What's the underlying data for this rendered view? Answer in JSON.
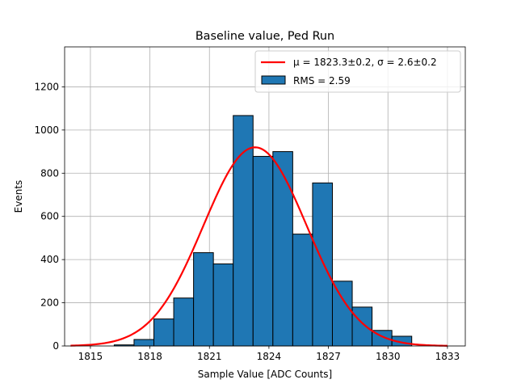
{
  "chart_data": {
    "type": "bar",
    "title": "Baseline value, Ped Run",
    "xlabel": "Sample Value [ADC Counts]",
    "ylabel": "Events",
    "xlim": [
      1813.7,
      1833.9
    ],
    "ylim": [
      0,
      1385
    ],
    "xticks": [
      1815,
      1818,
      1821,
      1824,
      1827,
      1830,
      1833
    ],
    "yticks": [
      0,
      200,
      400,
      600,
      800,
      1000,
      1200
    ],
    "grid": true,
    "legend_position": "top-right",
    "bar_color": "#1f77b4",
    "fit_color": "#ff0000",
    "bins": [
      {
        "x0": 1814.2,
        "x1": 1815.2,
        "value": 0
      },
      {
        "x0": 1815.2,
        "x1": 1816.2,
        "value": 0
      },
      {
        "x0": 1816.2,
        "x1": 1817.2,
        "value": 5
      },
      {
        "x0": 1817.2,
        "x1": 1818.2,
        "value": 30
      },
      {
        "x0": 1818.2,
        "x1": 1819.2,
        "value": 125
      },
      {
        "x0": 1819.2,
        "x1": 1820.2,
        "value": 222
      },
      {
        "x0": 1820.2,
        "x1": 1821.2,
        "value": 432
      },
      {
        "x0": 1821.2,
        "x1": 1822.2,
        "value": 380
      },
      {
        "x0": 1822.2,
        "x1": 1823.2,
        "value": 1067
      },
      {
        "x0": 1823.2,
        "x1": 1824.2,
        "value": 878
      },
      {
        "x0": 1824.2,
        "x1": 1825.2,
        "value": 900
      },
      {
        "x0": 1825.2,
        "x1": 1826.2,
        "value": 518
      },
      {
        "x0": 1826.2,
        "x1": 1827.2,
        "value": 755
      },
      {
        "x0": 1827.2,
        "x1": 1828.2,
        "value": 300
      },
      {
        "x0": 1828.2,
        "x1": 1829.2,
        "value": 180
      },
      {
        "x0": 1829.2,
        "x1": 1830.2,
        "value": 72
      },
      {
        "x0": 1830.2,
        "x1": 1831.2,
        "value": 45
      },
      {
        "x0": 1831.2,
        "x1": 1832.2,
        "value": 0
      },
      {
        "x0": 1832.2,
        "x1": 1833.2,
        "value": 0
      }
    ],
    "fit": {
      "mu": 1823.3,
      "sigma": 2.6,
      "amplitude": 920,
      "x_range": [
        1814.0,
        1833.0
      ]
    },
    "legend": [
      {
        "kind": "line",
        "label": "μ = 1823.3±0.2, σ = 2.6±0.2"
      },
      {
        "kind": "patch",
        "label": "RMS = 2.59"
      }
    ]
  }
}
